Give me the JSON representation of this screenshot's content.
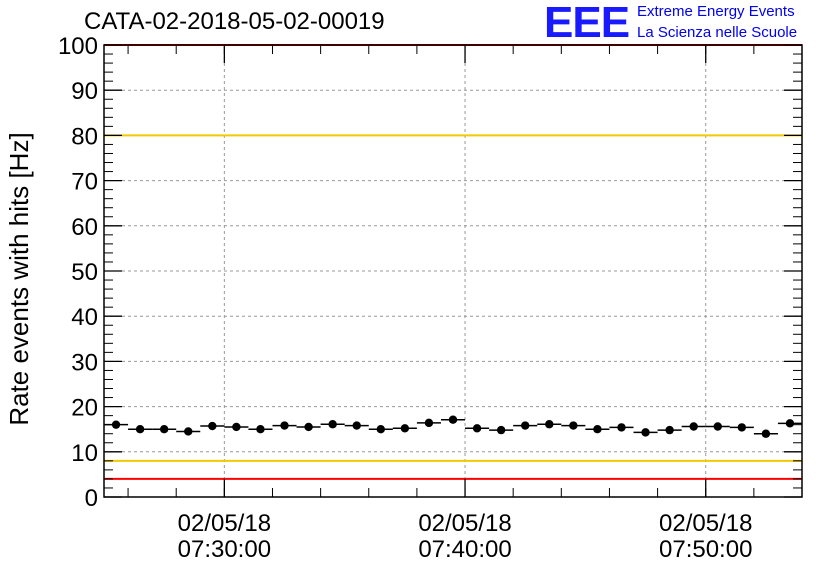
{
  "header": {
    "title": "CATA-02-2018-05-02-00019",
    "logo_text": "EEE",
    "logo_line1": "Extreme Energy Events",
    "logo_line2": "La Scienza nelle Scuole"
  },
  "colors": {
    "logo": "#1a1aff",
    "red_line": "#ff0000",
    "yellow_line": "#f2c900",
    "grid": "#999999"
  },
  "chart_data": {
    "type": "scatter",
    "ylabel": "Rate events with hits [Hz]",
    "xlabel": "",
    "ylim": [
      0,
      100
    ],
    "yticks": [
      0,
      10,
      20,
      30,
      40,
      50,
      60,
      70,
      80,
      90,
      100
    ],
    "xlim": [
      "07:25:00",
      "07:54:00"
    ],
    "xticks": [
      {
        "date": "02/05/18",
        "time": "07:30:00"
      },
      {
        "date": "02/05/18",
        "time": "07:40:00"
      },
      {
        "date": "02/05/18",
        "time": "07:50:00"
      }
    ],
    "hlines": [
      {
        "y": 100,
        "color": "red"
      },
      {
        "y": 80,
        "color": "yellow"
      },
      {
        "y": 8,
        "color": "yellow"
      },
      {
        "y": 4,
        "color": "red"
      }
    ],
    "grid": true,
    "series": [
      {
        "x": [
          "07:25:30",
          "07:26:30",
          "07:27:30",
          "07:28:30",
          "07:29:30",
          "07:30:30",
          "07:31:30",
          "07:32:30",
          "07:33:30",
          "07:34:30",
          "07:35:30",
          "07:36:30",
          "07:37:30",
          "07:38:30",
          "07:39:30",
          "07:40:30",
          "07:41:30",
          "07:42:30",
          "07:43:30",
          "07:44:30",
          "07:45:30",
          "07:46:30",
          "07:47:30",
          "07:48:30",
          "07:49:30",
          "07:50:30",
          "07:51:30",
          "07:52:30",
          "07:53:30"
        ],
        "values": [
          16.0,
          15.0,
          15.0,
          14.5,
          15.7,
          15.5,
          15.0,
          15.8,
          15.5,
          16.1,
          15.8,
          15.0,
          15.2,
          16.4,
          17.1,
          15.2,
          14.8,
          15.8,
          16.1,
          15.8,
          15.0,
          15.4,
          14.3,
          14.8,
          15.6,
          15.6,
          15.4,
          14.0,
          16.3
        ]
      }
    ]
  }
}
